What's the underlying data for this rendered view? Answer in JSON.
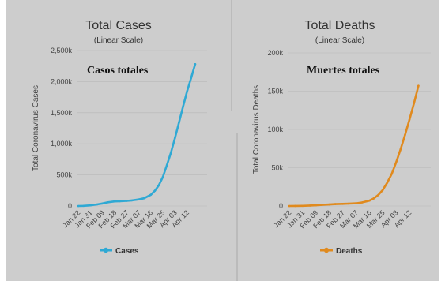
{
  "colors": {
    "background": "#cdcdcd",
    "cases": "#2fa9d4",
    "deaths": "#e08a1e"
  },
  "chart_data": [
    {
      "id": "cases",
      "type": "line",
      "title": "Total Cases",
      "subtitle": "(Linear Scale)",
      "annotation": "Casos totales",
      "ylabel": "Total Coronavirus Cases",
      "xlabel": "",
      "ylim": [
        0,
        2500000
      ],
      "yticks": [
        0,
        500000,
        1000000,
        1500000,
        2000000,
        2500000
      ],
      "ytick_labels": [
        "0",
        "500k",
        "1,000k",
        "1,500k",
        "2,000k",
        "2,500k"
      ],
      "xtick_labels": [
        "Jan 22",
        "Jan 31",
        "Feb 09",
        "Feb 18",
        "Feb 27",
        "Mar 07",
        "Mar 16",
        "Mar 25",
        "Apr 03",
        "Apr 12"
      ],
      "grid": true,
      "legend": "bottom",
      "series": [
        {
          "name": "Cases",
          "color": "#2fa9d4",
          "x": [
            "Jan 22",
            "Jan 26",
            "Jan 31",
            "Feb 05",
            "Feb 09",
            "Feb 13",
            "Feb 18",
            "Feb 22",
            "Feb 27",
            "Mar 02",
            "Mar 07",
            "Mar 11",
            "Mar 16",
            "Mar 19",
            "Mar 22",
            "Mar 25",
            "Mar 28",
            "Mar 31",
            "Apr 03",
            "Apr 06",
            "Apr 09",
            "Apr 12",
            "Apr 15",
            "Apr 18"
          ],
          "values": [
            500,
            2000,
            10000,
            25000,
            40000,
            60000,
            73000,
            78000,
            83000,
            90000,
            105000,
            125000,
            180000,
            245000,
            335000,
            470000,
            660000,
            860000,
            1095000,
            1345000,
            1600000,
            1845000,
            2060000,
            2280000
          ]
        }
      ]
    },
    {
      "id": "deaths",
      "type": "line",
      "title": "Total Deaths",
      "subtitle": "(Linear Scale)",
      "annotation": "Muertes totales",
      "ylabel": "Total Coronavirus Deaths",
      "xlabel": "",
      "ylim": [
        0,
        200000
      ],
      "yticks": [
        0,
        50000,
        100000,
        150000,
        200000
      ],
      "ytick_labels": [
        "0",
        "50k",
        "100k",
        "150k",
        "200k"
      ],
      "xtick_labels": [
        "Jan 22",
        "Jan 31",
        "Feb 09",
        "Feb 18",
        "Feb 27",
        "Mar 07",
        "Mar 16",
        "Mar 25",
        "Apr 03",
        "Apr 12"
      ],
      "grid": true,
      "legend": "bottom",
      "series": [
        {
          "name": "Deaths",
          "color": "#e08a1e",
          "x": [
            "Jan 22",
            "Jan 26",
            "Jan 31",
            "Feb 05",
            "Feb 09",
            "Feb 13",
            "Feb 18",
            "Feb 22",
            "Feb 27",
            "Mar 02",
            "Mar 07",
            "Mar 11",
            "Mar 16",
            "Mar 19",
            "Mar 22",
            "Mar 25",
            "Mar 28",
            "Mar 31",
            "Apr 03",
            "Apr 06",
            "Apr 09",
            "Apr 12",
            "Apr 15",
            "Apr 18"
          ],
          "values": [
            20,
            60,
            250,
            600,
            900,
            1400,
            2000,
            2500,
            2800,
            3100,
            3500,
            4600,
            7000,
            10000,
            14500,
            21000,
            30500,
            42000,
            57000,
            74000,
            93000,
            113000,
            134000,
            157000
          ]
        }
      ]
    }
  ]
}
